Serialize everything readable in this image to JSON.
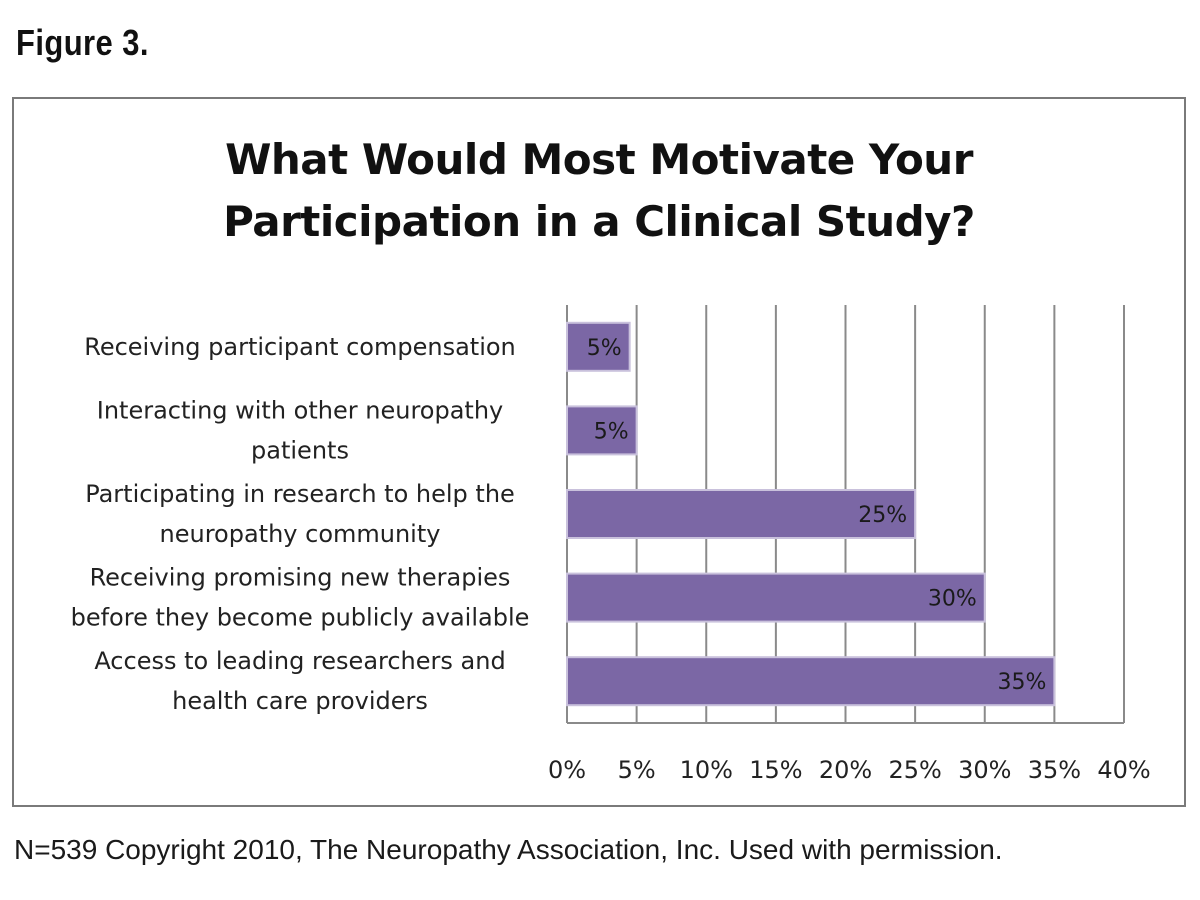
{
  "figure_label": "Figure 3.",
  "caption": "N=539 Copyright 2010, The Neuropathy Association, Inc. Used with permission.",
  "colors": {
    "bar_fill": "#7b67a5",
    "bar_stroke": "#c9c1dc",
    "gridline": "#8a8a8a",
    "frame": "#7a7a7a"
  },
  "chart_data": {
    "type": "bar",
    "orientation": "horizontal",
    "title": "What Would Most Motivate Your Participation in a Clinical Study?",
    "title_lines": [
      "What Would Most Motivate Your",
      "Participation in a Clinical Study?"
    ],
    "categories": [
      {
        "lines": [
          "Receiving participant compensation"
        ],
        "value": 4.5,
        "label": "5%"
      },
      {
        "lines": [
          "Interacting with other neuropathy",
          "patients"
        ],
        "value": 5,
        "label": "5%"
      },
      {
        "lines": [
          "Participating in research to help the",
          "neuropathy community"
        ],
        "value": 25,
        "label": "25%"
      },
      {
        "lines": [
          "Receiving promising new therapies",
          "before they become publicly available"
        ],
        "value": 30,
        "label": "30%"
      },
      {
        "lines": [
          "Access to leading researchers and",
          "health care providers"
        ],
        "value": 35,
        "label": "35%"
      }
    ],
    "xlim": [
      0,
      40
    ],
    "xticks": [
      "0%",
      "5%",
      "10%",
      "15%",
      "20%",
      "25%",
      "30%",
      "35%",
      "40%"
    ],
    "xtick_values": [
      0,
      5,
      10,
      15,
      20,
      25,
      30,
      35,
      40
    ],
    "grid": "vertical",
    "legend": "none"
  }
}
